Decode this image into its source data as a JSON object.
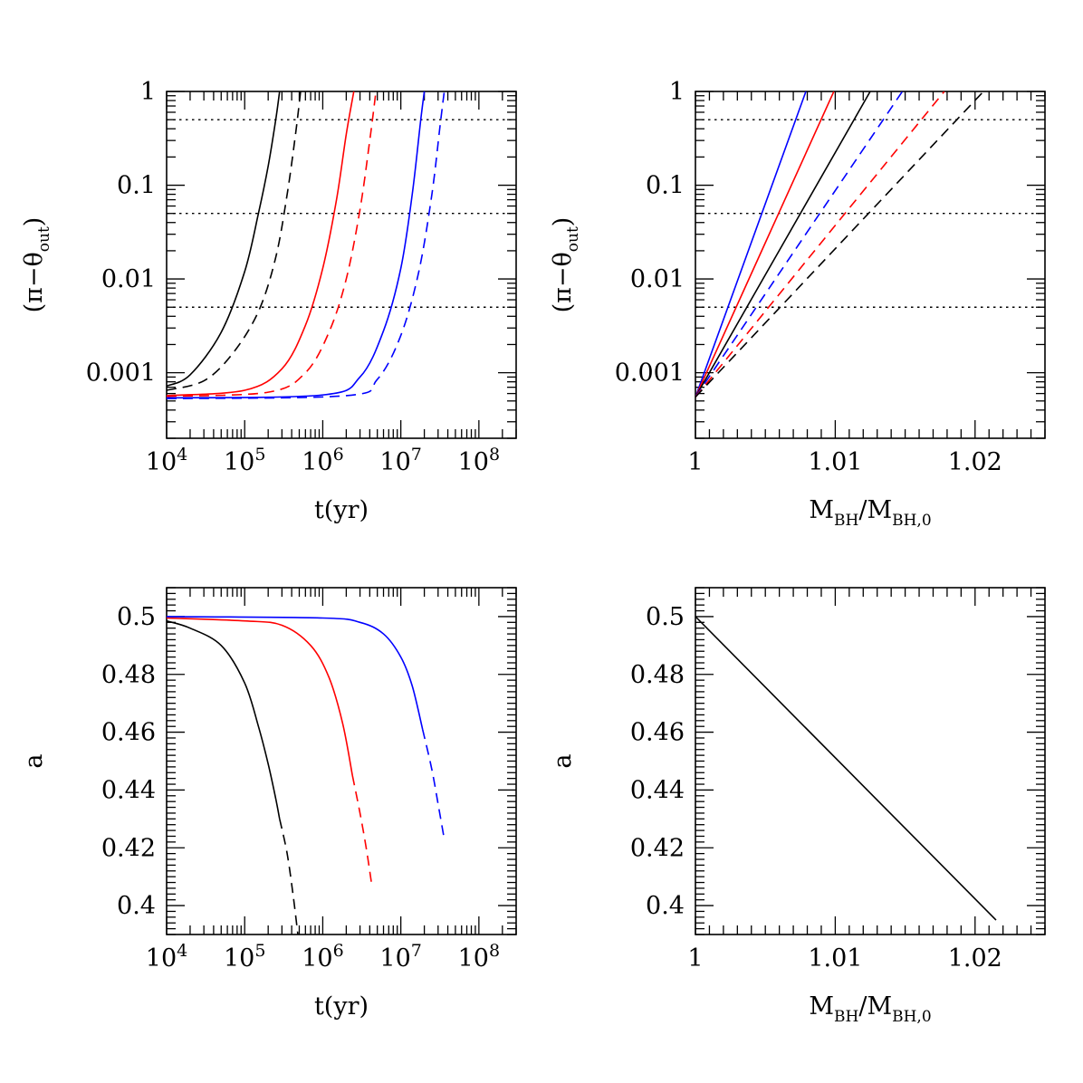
{
  "figure": {
    "background": "#ffffff"
  },
  "colors": {
    "black": "#000000",
    "red": "#ff0000",
    "blue": "#0000ff"
  },
  "chart_data": [
    {
      "id": "top-left",
      "type": "line",
      "xscale": "log",
      "yscale": "log",
      "xlim": [
        10000,
        300000000
      ],
      "ylim": [
        0.0002,
        1
      ],
      "xlabel": "t(yr)",
      "ylabel": "(π−θout)",
      "xticks": [
        {
          "value": 10000,
          "base": "10",
          "exp": "4"
        },
        {
          "value": 100000,
          "base": "10",
          "exp": "5"
        },
        {
          "value": 1000000,
          "base": "10",
          "exp": "6"
        },
        {
          "value": 10000000,
          "base": "10",
          "exp": "7"
        },
        {
          "value": 100000000,
          "base": "10",
          "exp": "8"
        }
      ],
      "yticks": [
        {
          "value": 0.001,
          "label": "0.001"
        },
        {
          "value": 0.01,
          "label": "0.01"
        },
        {
          "value": 0.1,
          "label": "0.1"
        },
        {
          "value": 1,
          "label": "1"
        }
      ],
      "hlines": [
        0.005,
        0.05,
        0.5
      ],
      "series": [
        {
          "name": "black-solid",
          "color": "#000000",
          "dash": "solid",
          "x": [
            10000,
            20000,
            50000,
            100000,
            150000,
            200000,
            250000,
            280000
          ],
          "y": [
            0.00072,
            0.00095,
            0.0027,
            0.012,
            0.05,
            0.16,
            0.5,
            1
          ]
        },
        {
          "name": "black-dashed",
          "color": "#000000",
          "dash": "dashed",
          "x": [
            10000,
            30000,
            70000,
            150000,
            250000,
            350000,
            450000,
            520000
          ],
          "y": [
            0.00065,
            0.00082,
            0.0016,
            0.0045,
            0.017,
            0.08,
            0.36,
            1
          ]
        },
        {
          "name": "red-solid",
          "color": "#ff0000",
          "dash": "solid",
          "x": [
            10000,
            100000,
            300000,
            600000,
            1000000,
            1500000,
            2000000,
            2500000
          ],
          "y": [
            0.00057,
            0.00065,
            0.0011,
            0.0032,
            0.013,
            0.07,
            0.35,
            1
          ]
        },
        {
          "name": "red-dashed",
          "color": "#ff0000",
          "dash": "dashed",
          "x": [
            10000,
            200000,
            600000,
            1200000,
            2000000,
            3000000,
            4000000,
            4800000
          ],
          "y": [
            0.00056,
            0.00062,
            0.001,
            0.0027,
            0.01,
            0.055,
            0.3,
            1
          ]
        },
        {
          "name": "blue-solid",
          "color": "#0000ff",
          "dash": "solid",
          "x": [
            10000,
            1000000,
            3000000,
            6000000,
            10000000,
            14000000,
            18000000,
            20000000
          ],
          "y": [
            0.00054,
            0.00058,
            0.0009,
            0.0028,
            0.013,
            0.08,
            0.5,
            1
          ]
        },
        {
          "name": "blue-dashed",
          "color": "#0000ff",
          "dash": "dashed",
          "x": [
            10000,
            2000000,
            5000000,
            10000000,
            17000000,
            25000000,
            32000000,
            36000000
          ],
          "y": [
            0.00053,
            0.00057,
            0.00085,
            0.0025,
            0.012,
            0.08,
            0.45,
            1
          ]
        }
      ]
    },
    {
      "id": "top-right",
      "type": "line",
      "xscale": "linear",
      "yscale": "log",
      "xlim": [
        1,
        1.025
      ],
      "ylim": [
        0.0002,
        1
      ],
      "xlabel_main": "M",
      "xlabel_sub1": "BH",
      "xlabel_mid": "/M",
      "xlabel_sub2": "BH,0",
      "ylabel": "(π−θout)",
      "xticks": [
        {
          "value": 1,
          "label": "1"
        },
        {
          "value": 1.01,
          "label": "1.01"
        },
        {
          "value": 1.02,
          "label": "1.02"
        }
      ],
      "yticks": [
        {
          "value": 0.001,
          "label": "0.001"
        },
        {
          "value": 0.01,
          "label": "0.01"
        },
        {
          "value": 0.1,
          "label": "0.1"
        },
        {
          "value": 1,
          "label": "1"
        }
      ],
      "hlines": [
        0.005,
        0.05,
        0.5
      ],
      "series": [
        {
          "name": "blue-solid",
          "color": "#0000ff",
          "dash": "solid",
          "x": [
            1,
            1.0079
          ],
          "y": [
            0.00055,
            1
          ]
        },
        {
          "name": "red-solid",
          "color": "#ff0000",
          "dash": "solid",
          "x": [
            1,
            1.0099
          ],
          "y": [
            0.00055,
            1
          ]
        },
        {
          "name": "black-solid",
          "color": "#000000",
          "dash": "solid",
          "x": [
            1,
            1.0125
          ],
          "y": [
            0.00055,
            1
          ]
        },
        {
          "name": "blue-dashed",
          "color": "#0000ff",
          "dash": "dashed",
          "x": [
            1,
            1.0148
          ],
          "y": [
            0.00055,
            1
          ]
        },
        {
          "name": "red-dashed",
          "color": "#ff0000",
          "dash": "dashed",
          "x": [
            1,
            1.0178
          ],
          "y": [
            0.00055,
            1
          ]
        },
        {
          "name": "black-dashed",
          "color": "#000000",
          "dash": "dashed",
          "x": [
            1,
            1.0206
          ],
          "y": [
            0.00055,
            1
          ]
        }
      ]
    },
    {
      "id": "bottom-left",
      "type": "line",
      "xscale": "log",
      "yscale": "linear",
      "xlim": [
        10000,
        300000000
      ],
      "ylim": [
        0.39,
        0.51
      ],
      "xlabel": "t(yr)",
      "ylabel": "a",
      "xticks": [
        {
          "value": 10000,
          "base": "10",
          "exp": "4"
        },
        {
          "value": 100000,
          "base": "10",
          "exp": "5"
        },
        {
          "value": 1000000,
          "base": "10",
          "exp": "6"
        },
        {
          "value": 10000000,
          "base": "10",
          "exp": "7"
        },
        {
          "value": 100000000,
          "base": "10",
          "exp": "8"
        }
      ],
      "yticks": [
        {
          "value": 0.4,
          "label": "0.4"
        },
        {
          "value": 0.42,
          "label": "0.42"
        },
        {
          "value": 0.44,
          "label": "0.44"
        },
        {
          "value": 0.46,
          "label": "0.46"
        },
        {
          "value": 0.48,
          "label": "0.48"
        },
        {
          "value": 0.5,
          "label": "0.5"
        }
      ],
      "series": [
        {
          "name": "black-solid",
          "color": "#000000",
          "dash": "solid",
          "x": [
            10000,
            20000,
            50000,
            100000,
            150000,
            200000,
            250000,
            280000
          ],
          "y": [
            0.4985,
            0.496,
            0.49,
            0.477,
            0.462,
            0.449,
            0.437,
            0.43
          ]
        },
        {
          "name": "black-dashed",
          "color": "#000000",
          "dash": "dashed",
          "x": [
            280000,
            350000,
            420000,
            480000
          ],
          "y": [
            0.43,
            0.418,
            0.403,
            0.39
          ]
        },
        {
          "name": "red-solid",
          "color": "#ff0000",
          "dash": "solid",
          "x": [
            10000,
            100000,
            300000,
            700000,
            1200000,
            1800000,
            2400000
          ],
          "y": [
            0.4995,
            0.4985,
            0.497,
            0.49,
            0.479,
            0.463,
            0.445
          ]
        },
        {
          "name": "red-dashed",
          "color": "#ff0000",
          "dash": "dashed",
          "x": [
            2400000,
            3000000,
            3600000,
            4200000
          ],
          "y": [
            0.445,
            0.432,
            0.42,
            0.408
          ]
        },
        {
          "name": "blue-solid",
          "color": "#0000ff",
          "dash": "solid",
          "x": [
            10000,
            1000000,
            3000000,
            6000000,
            10000000,
            14000000,
            19000000
          ],
          "y": [
            0.5,
            0.4995,
            0.498,
            0.494,
            0.486,
            0.476,
            0.461
          ]
        },
        {
          "name": "blue-dashed",
          "color": "#0000ff",
          "dash": "dashed",
          "x": [
            19000000,
            25000000,
            31000000,
            36000000
          ],
          "y": [
            0.461,
            0.447,
            0.433,
            0.423
          ]
        }
      ]
    },
    {
      "id": "bottom-right",
      "type": "line",
      "xscale": "linear",
      "yscale": "linear",
      "xlim": [
        1,
        1.025
      ],
      "ylim": [
        0.39,
        0.51
      ],
      "xlabel_main": "M",
      "xlabel_sub1": "BH",
      "xlabel_mid": "/M",
      "xlabel_sub2": "BH,0",
      "ylabel": "a",
      "xticks": [
        {
          "value": 1,
          "label": "1"
        },
        {
          "value": 1.01,
          "label": "1.01"
        },
        {
          "value": 1.02,
          "label": "1.02"
        }
      ],
      "yticks": [
        {
          "value": 0.4,
          "label": "0.4"
        },
        {
          "value": 0.42,
          "label": "0.42"
        },
        {
          "value": 0.44,
          "label": "0.44"
        },
        {
          "value": 0.46,
          "label": "0.46"
        },
        {
          "value": 0.48,
          "label": "0.48"
        },
        {
          "value": 0.5,
          "label": "0.5"
        }
      ],
      "series": [
        {
          "name": "black-solid",
          "color": "#000000",
          "dash": "solid",
          "x": [
            1,
            1.0215
          ],
          "y": [
            0.5,
            0.395
          ]
        }
      ]
    }
  ]
}
